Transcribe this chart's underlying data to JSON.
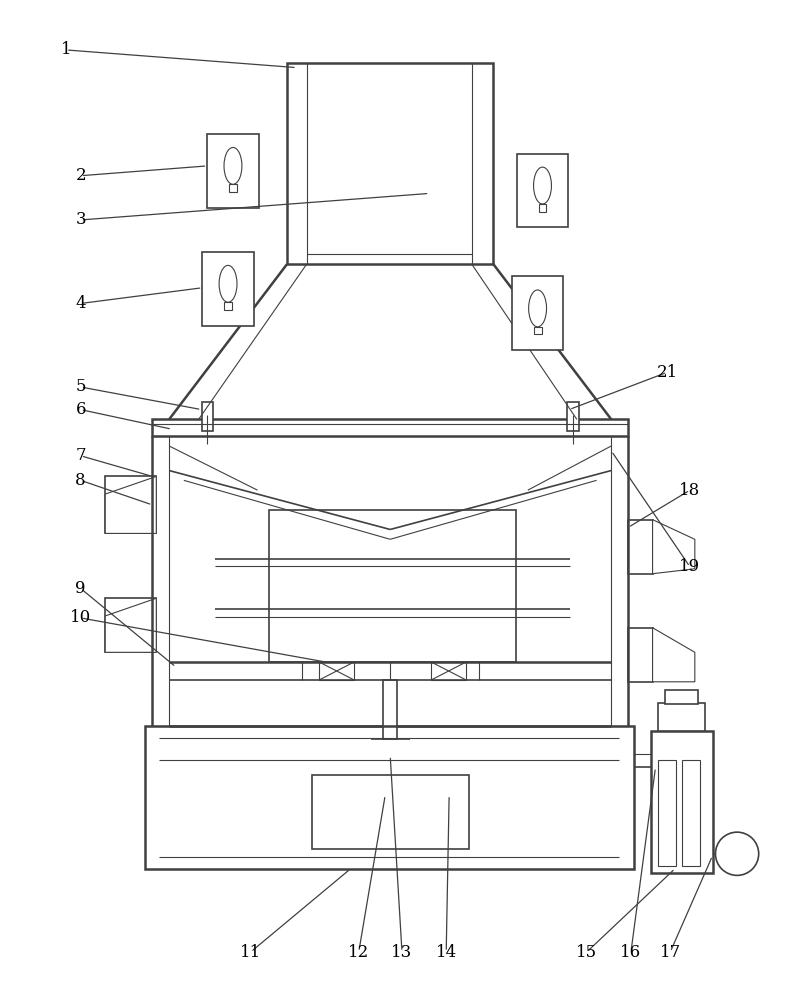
{
  "bg_color": "#ffffff",
  "line_color": "#404040",
  "lw_thin": 0.8,
  "lw_med": 1.2,
  "lw_thick": 1.8,
  "fig_width": 8.02,
  "fig_height": 10.0
}
